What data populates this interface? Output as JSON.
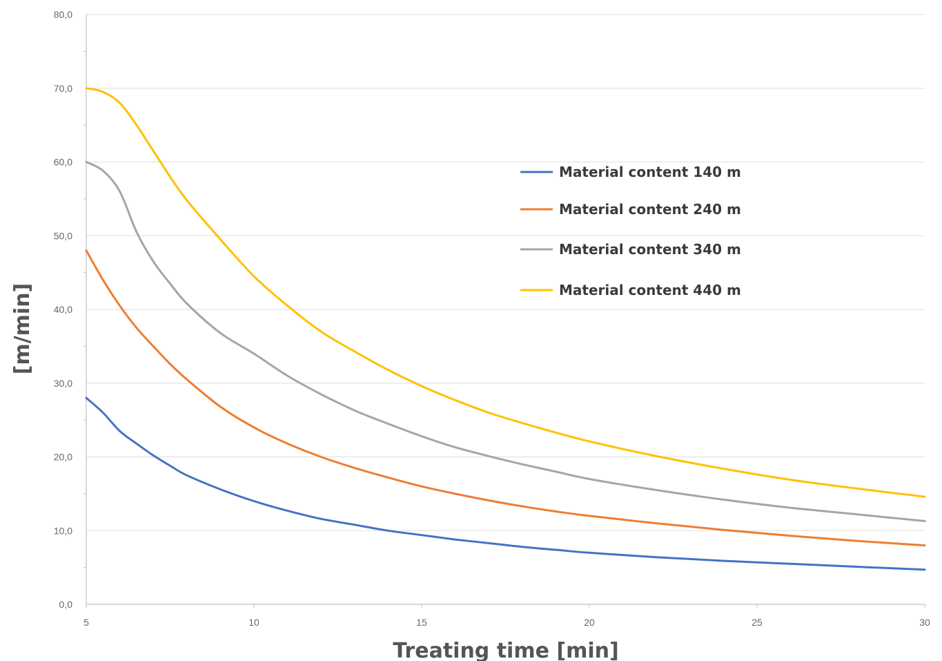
{
  "chart_data": {
    "type": "line",
    "title": "",
    "xlabel": "Treating time [min]",
    "ylabel": "[m/min]",
    "xlim": [
      5,
      30
    ],
    "ylim": [
      0,
      80
    ],
    "x_ticks": [
      "5",
      "10",
      "15",
      "20",
      "25",
      "30"
    ],
    "x_tick_values": [
      5,
      10,
      15,
      20,
      25,
      30
    ],
    "y_ticks": [
      "0,0",
      "10,0",
      "20,0",
      "30,0",
      "40,0",
      "50,0",
      "60,0",
      "70,0",
      "80,0"
    ],
    "y_tick_values": [
      0,
      10,
      20,
      30,
      40,
      50,
      60,
      70,
      80
    ],
    "grid": "horizontal",
    "legend_position": "center-right",
    "series": [
      {
        "name": "Material content 140 m",
        "color": "#4472C4",
        "x": [
          5,
          5.5,
          6,
          6.5,
          7,
          7.5,
          8,
          9,
          10,
          11,
          12,
          13,
          14,
          15,
          16,
          17,
          18,
          19,
          20,
          22,
          24,
          26,
          28,
          30
        ],
        "y": [
          28,
          26,
          23.5,
          21.8,
          20.2,
          18.8,
          17.5,
          15.6,
          14,
          12.7,
          11.6,
          10.8,
          10,
          9.4,
          8.8,
          8.3,
          7.8,
          7.4,
          7,
          6.4,
          5.9,
          5.5,
          5.1,
          4.7
        ]
      },
      {
        "name": "Material content 240 m",
        "color": "#ED7D31",
        "x": [
          5,
          5.5,
          6,
          6.5,
          7,
          7.5,
          8,
          9,
          10,
          11,
          12,
          13,
          14,
          15,
          16,
          17,
          18,
          19,
          20,
          22,
          24,
          26,
          28,
          30
        ],
        "y": [
          48,
          44,
          40.5,
          37.5,
          35,
          32.6,
          30.5,
          26.8,
          24,
          21.8,
          20,
          18.5,
          17.2,
          16,
          15,
          14.1,
          13.3,
          12.6,
          12,
          11,
          10.1,
          9.3,
          8.6,
          8
        ]
      },
      {
        "name": "Material content 340 m",
        "color": "#A5A5A5",
        "x": [
          5,
          5.5,
          6,
          6.5,
          7,
          7.5,
          8,
          9,
          10,
          11,
          12,
          13,
          14,
          15,
          16,
          17,
          18,
          19,
          20,
          22,
          24,
          26,
          28,
          30
        ],
        "y": [
          60,
          58.8,
          56,
          50.5,
          46.5,
          43.5,
          40.8,
          36.8,
          34,
          31,
          28.5,
          26.3,
          24.5,
          22.8,
          21.3,
          20.1,
          19,
          18,
          17,
          15.5,
          14.2,
          13.1,
          12.2,
          11.3
        ]
      },
      {
        "name": "Material content 440 m",
        "color": "#FFC000",
        "x": [
          5,
          5.5,
          6,
          6.5,
          7,
          7.5,
          8,
          9,
          10,
          11,
          12,
          13,
          14,
          15,
          16,
          17,
          18,
          19,
          20,
          22,
          24,
          26,
          28,
          30
        ],
        "y": [
          70,
          69.5,
          68,
          65,
          61.5,
          58,
          54.8,
          49.5,
          44.5,
          40.5,
          37,
          34.3,
          31.8,
          29.6,
          27.7,
          26,
          24.6,
          23.3,
          22.1,
          20.1,
          18.4,
          16.9,
          15.7,
          14.6
        ]
      }
    ]
  }
}
